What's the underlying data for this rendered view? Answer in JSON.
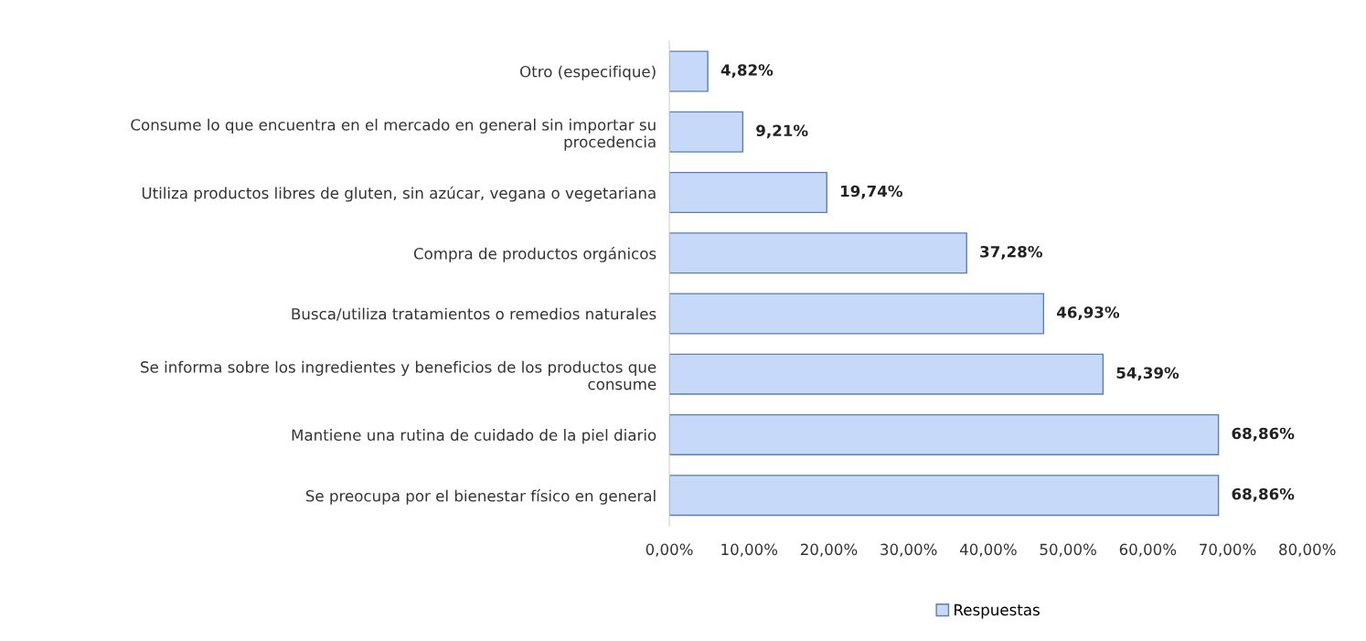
{
  "chart_data": {
    "type": "bar",
    "orientation": "horizontal",
    "categories": [
      "Otro (especifique)",
      "Consume lo que encuentra en el mercado en general sin importar su\nprocedencia",
      "Utiliza productos libres de gluten, sin azúcar, vegana o vegetariana",
      "Compra de productos orgánicos",
      "Busca/utiliza tratamientos o remedios naturales",
      "Se informa sobre los ingredientes y beneficios de los productos que\nconsume",
      "Mantiene una rutina de cuidado de la piel diario",
      "Se preocupa por el bienestar físico en general"
    ],
    "series": [
      {
        "name": "Respuestas",
        "color": "#c6d9f8",
        "values": [
          4.82,
          9.21,
          19.74,
          37.28,
          46.93,
          54.39,
          68.86,
          68.86
        ],
        "value_labels": [
          "4,82%",
          "9,21%",
          "19,74%",
          "37,28%",
          "46,93%",
          "54,39%",
          "68,86%",
          "68,86%"
        ]
      }
    ],
    "xlim": [
      0,
      80
    ],
    "xticks": [
      {
        "value": 0,
        "label": "0,00%"
      },
      {
        "value": 10,
        "label": "10,00%"
      },
      {
        "value": 20,
        "label": "20,00%"
      },
      {
        "value": 30,
        "label": "30,00%"
      },
      {
        "value": 40,
        "label": "40,00%"
      },
      {
        "value": 50,
        "label": "50,00%"
      },
      {
        "value": 60,
        "label": "60,00%"
      },
      {
        "value": 70,
        "label": "70,00%"
      },
      {
        "value": 80,
        "label": "80,00%"
      }
    ],
    "legend": "bottom",
    "grid": false
  }
}
